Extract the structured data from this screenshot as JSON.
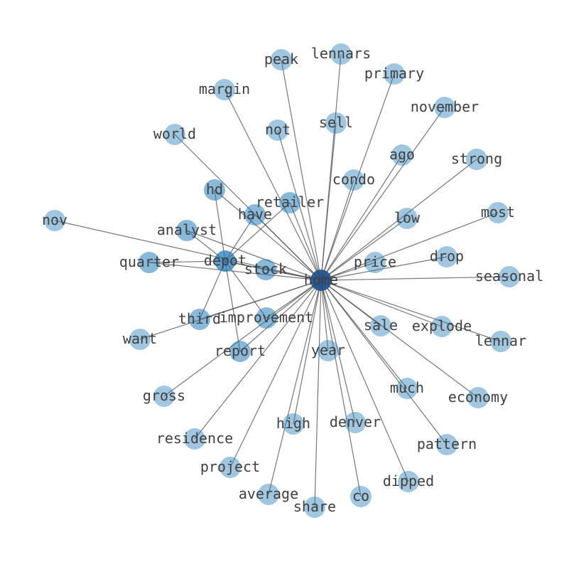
{
  "graph": {
    "edge_color": "#555555",
    "node_color": "#1f77b4",
    "hub_color": "#1f4e8c",
    "nodes": [
      {
        "id": "home",
        "shade": "hub"
      },
      {
        "id": "depot",
        "shade": "secondary"
      },
      {
        "id": "peak"
      },
      {
        "id": "lennars"
      },
      {
        "id": "primary"
      },
      {
        "id": "margin"
      },
      {
        "id": "november"
      },
      {
        "id": "sell"
      },
      {
        "id": "not"
      },
      {
        "id": "world"
      },
      {
        "id": "ago"
      },
      {
        "id": "strong"
      },
      {
        "id": "condo"
      },
      {
        "id": "hd",
        "shade": "mid"
      },
      {
        "id": "retailer",
        "shade": "mid"
      },
      {
        "id": "have",
        "shade": "mid"
      },
      {
        "id": "most"
      },
      {
        "id": "nov"
      },
      {
        "id": "analyst",
        "shade": "mid"
      },
      {
        "id": "low"
      },
      {
        "id": "drop"
      },
      {
        "id": "price"
      },
      {
        "id": "quarter",
        "shade": "mid"
      },
      {
        "id": "stock",
        "shade": "mid"
      },
      {
        "id": "seasonal"
      },
      {
        "id": "third",
        "shade": "mid"
      },
      {
        "id": "improvement",
        "shade": "mid"
      },
      {
        "id": "sale"
      },
      {
        "id": "explode"
      },
      {
        "id": "want"
      },
      {
        "id": "lennar"
      },
      {
        "id": "report",
        "shade": "mid"
      },
      {
        "id": "year"
      },
      {
        "id": "much"
      },
      {
        "id": "gross"
      },
      {
        "id": "economy"
      },
      {
        "id": "high"
      },
      {
        "id": "denver"
      },
      {
        "id": "residence"
      },
      {
        "id": "pattern"
      },
      {
        "id": "project"
      },
      {
        "id": "dipped"
      },
      {
        "id": "average"
      },
      {
        "id": "co"
      },
      {
        "id": "share"
      }
    ],
    "edges": [
      [
        "home",
        "depot"
      ],
      [
        "home",
        "peak"
      ],
      [
        "home",
        "lennars"
      ],
      [
        "home",
        "primary"
      ],
      [
        "home",
        "margin"
      ],
      [
        "home",
        "november"
      ],
      [
        "home",
        "sell"
      ],
      [
        "home",
        "not"
      ],
      [
        "home",
        "world"
      ],
      [
        "home",
        "ago"
      ],
      [
        "home",
        "strong"
      ],
      [
        "home",
        "condo"
      ],
      [
        "home",
        "hd"
      ],
      [
        "home",
        "retailer"
      ],
      [
        "home",
        "have"
      ],
      [
        "home",
        "most"
      ],
      [
        "home",
        "nov"
      ],
      [
        "home",
        "analyst"
      ],
      [
        "home",
        "low"
      ],
      [
        "home",
        "drop"
      ],
      [
        "home",
        "price"
      ],
      [
        "home",
        "quarter"
      ],
      [
        "home",
        "stock"
      ],
      [
        "home",
        "seasonal"
      ],
      [
        "home",
        "third"
      ],
      [
        "home",
        "improvement"
      ],
      [
        "home",
        "sale"
      ],
      [
        "home",
        "explode"
      ],
      [
        "home",
        "want"
      ],
      [
        "home",
        "lennar"
      ],
      [
        "home",
        "report"
      ],
      [
        "home",
        "year"
      ],
      [
        "home",
        "much"
      ],
      [
        "home",
        "gross"
      ],
      [
        "home",
        "economy"
      ],
      [
        "home",
        "high"
      ],
      [
        "home",
        "denver"
      ],
      [
        "home",
        "residence"
      ],
      [
        "home",
        "pattern"
      ],
      [
        "home",
        "project"
      ],
      [
        "home",
        "dipped"
      ],
      [
        "home",
        "average"
      ],
      [
        "home",
        "co"
      ],
      [
        "home",
        "share"
      ],
      [
        "depot",
        "hd"
      ],
      [
        "depot",
        "have"
      ],
      [
        "depot",
        "retailer"
      ],
      [
        "depot",
        "analyst"
      ],
      [
        "depot",
        "quarter"
      ],
      [
        "depot",
        "third"
      ],
      [
        "depot",
        "report"
      ],
      [
        "depot",
        "improvement"
      ],
      [
        "depot",
        "stock"
      ]
    ]
  }
}
